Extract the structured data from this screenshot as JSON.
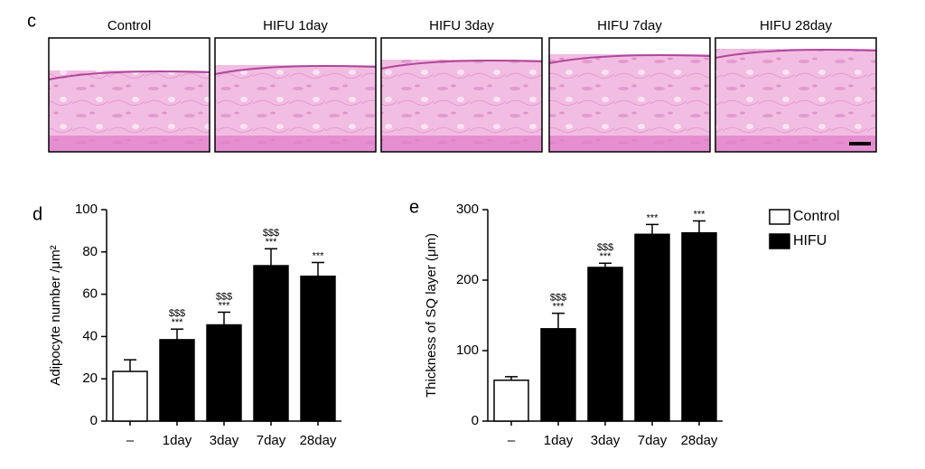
{
  "histology": {
    "label": "c",
    "panels": [
      "Control",
      "HIFU 1day",
      "HIFU 3day",
      "HIFU 7day",
      "HIFU 28day"
    ]
  },
  "legend": [
    {
      "name": "Control",
      "color": "#ffffff"
    },
    {
      "name": "HIFU",
      "color": "#000000"
    }
  ],
  "chart_data": [
    {
      "type": "bar",
      "panel": "d",
      "y_label": "Adipocyte number /μm²",
      "categories": [
        "–",
        "1day",
        "3day",
        "7day",
        "28day"
      ],
      "values": [
        23.5,
        38.5,
        45.5,
        73.5,
        68.5
      ],
      "errors": [
        5.5,
        5,
        6,
        8,
        6.5
      ],
      "colors": [
        "#ffffff",
        "#000000",
        "#000000",
        "#000000",
        "#000000"
      ],
      "annotations": [
        null,
        [
          "***",
          "$$$"
        ],
        [
          "***",
          "$$$"
        ],
        [
          "***",
          "$$$"
        ],
        [
          "***"
        ]
      ],
      "ylim": [
        0,
        100
      ],
      "yticks": [
        0,
        20,
        40,
        60,
        80,
        100
      ]
    },
    {
      "type": "bar",
      "panel": "e",
      "y_label": "Thickness of SQ layer (μm)",
      "categories": [
        "–",
        "1day",
        "3day",
        "7day",
        "28day"
      ],
      "values": [
        58,
        131,
        218,
        265,
        267
      ],
      "errors": [
        5,
        22,
        6,
        14,
        17
      ],
      "colors": [
        "#ffffff",
        "#000000",
        "#000000",
        "#000000",
        "#000000"
      ],
      "annotations": [
        null,
        [
          "***",
          "$$$"
        ],
        [
          "***",
          "$$$"
        ],
        [
          "***"
        ],
        [
          "***"
        ]
      ],
      "ylim": [
        0,
        300
      ],
      "yticks": [
        0,
        100,
        200,
        300
      ]
    }
  ]
}
